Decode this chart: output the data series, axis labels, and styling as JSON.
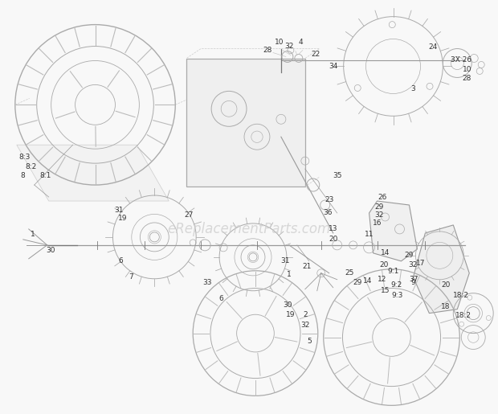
{
  "bg_color": "#f8f8f8",
  "line_color": "#999999",
  "dark_line": "#777777",
  "label_color": "#333333",
  "watermark": "eReplacementParts.com",
  "watermark_color": "#cccccc",
  "label_fontsize": 6.5,
  "figsize": [
    6.2,
    5.15
  ],
  "dpi": 100
}
